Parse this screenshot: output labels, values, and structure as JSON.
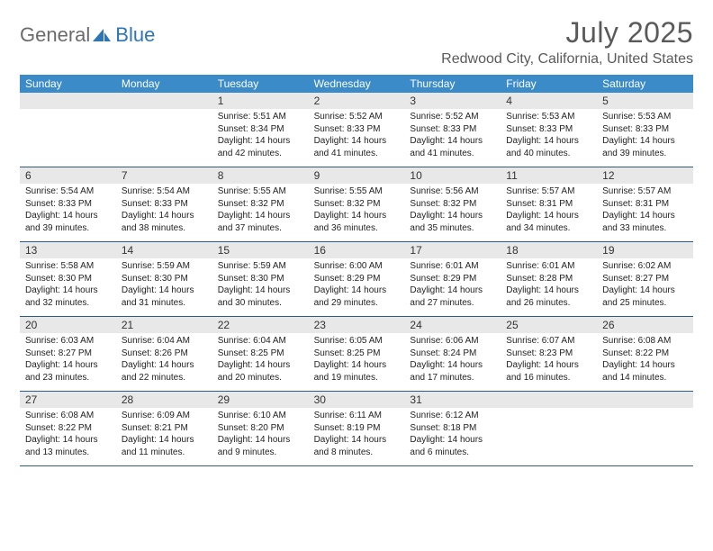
{
  "logo": {
    "text1": "General",
    "text2": "Blue",
    "text1_color": "#6b6b6b",
    "text2_color": "#2e75b6",
    "shape_color": "#2e75b6"
  },
  "title": "July 2025",
  "location": "Redwood City, California, United States",
  "colors": {
    "header_bg": "#3b8bc8",
    "header_text": "#ffffff",
    "daynum_bg": "#e8e8e8",
    "week_border": "#2e5c8a",
    "title_color": "#5a5a5a",
    "body_text": "#222222"
  },
  "day_headers": [
    "Sunday",
    "Monday",
    "Tuesday",
    "Wednesday",
    "Thursday",
    "Friday",
    "Saturday"
  ],
  "weeks": [
    [
      null,
      null,
      {
        "n": "1",
        "sr": "Sunrise: 5:51 AM",
        "ss": "Sunset: 8:34 PM",
        "d1": "Daylight: 14 hours",
        "d2": "and 42 minutes."
      },
      {
        "n": "2",
        "sr": "Sunrise: 5:52 AM",
        "ss": "Sunset: 8:33 PM",
        "d1": "Daylight: 14 hours",
        "d2": "and 41 minutes."
      },
      {
        "n": "3",
        "sr": "Sunrise: 5:52 AM",
        "ss": "Sunset: 8:33 PM",
        "d1": "Daylight: 14 hours",
        "d2": "and 41 minutes."
      },
      {
        "n": "4",
        "sr": "Sunrise: 5:53 AM",
        "ss": "Sunset: 8:33 PM",
        "d1": "Daylight: 14 hours",
        "d2": "and 40 minutes."
      },
      {
        "n": "5",
        "sr": "Sunrise: 5:53 AM",
        "ss": "Sunset: 8:33 PM",
        "d1": "Daylight: 14 hours",
        "d2": "and 39 minutes."
      }
    ],
    [
      {
        "n": "6",
        "sr": "Sunrise: 5:54 AM",
        "ss": "Sunset: 8:33 PM",
        "d1": "Daylight: 14 hours",
        "d2": "and 39 minutes."
      },
      {
        "n": "7",
        "sr": "Sunrise: 5:54 AM",
        "ss": "Sunset: 8:33 PM",
        "d1": "Daylight: 14 hours",
        "d2": "and 38 minutes."
      },
      {
        "n": "8",
        "sr": "Sunrise: 5:55 AM",
        "ss": "Sunset: 8:32 PM",
        "d1": "Daylight: 14 hours",
        "d2": "and 37 minutes."
      },
      {
        "n": "9",
        "sr": "Sunrise: 5:55 AM",
        "ss": "Sunset: 8:32 PM",
        "d1": "Daylight: 14 hours",
        "d2": "and 36 minutes."
      },
      {
        "n": "10",
        "sr": "Sunrise: 5:56 AM",
        "ss": "Sunset: 8:32 PM",
        "d1": "Daylight: 14 hours",
        "d2": "and 35 minutes."
      },
      {
        "n": "11",
        "sr": "Sunrise: 5:57 AM",
        "ss": "Sunset: 8:31 PM",
        "d1": "Daylight: 14 hours",
        "d2": "and 34 minutes."
      },
      {
        "n": "12",
        "sr": "Sunrise: 5:57 AM",
        "ss": "Sunset: 8:31 PM",
        "d1": "Daylight: 14 hours",
        "d2": "and 33 minutes."
      }
    ],
    [
      {
        "n": "13",
        "sr": "Sunrise: 5:58 AM",
        "ss": "Sunset: 8:30 PM",
        "d1": "Daylight: 14 hours",
        "d2": "and 32 minutes."
      },
      {
        "n": "14",
        "sr": "Sunrise: 5:59 AM",
        "ss": "Sunset: 8:30 PM",
        "d1": "Daylight: 14 hours",
        "d2": "and 31 minutes."
      },
      {
        "n": "15",
        "sr": "Sunrise: 5:59 AM",
        "ss": "Sunset: 8:30 PM",
        "d1": "Daylight: 14 hours",
        "d2": "and 30 minutes."
      },
      {
        "n": "16",
        "sr": "Sunrise: 6:00 AM",
        "ss": "Sunset: 8:29 PM",
        "d1": "Daylight: 14 hours",
        "d2": "and 29 minutes."
      },
      {
        "n": "17",
        "sr": "Sunrise: 6:01 AM",
        "ss": "Sunset: 8:29 PM",
        "d1": "Daylight: 14 hours",
        "d2": "and 27 minutes."
      },
      {
        "n": "18",
        "sr": "Sunrise: 6:01 AM",
        "ss": "Sunset: 8:28 PM",
        "d1": "Daylight: 14 hours",
        "d2": "and 26 minutes."
      },
      {
        "n": "19",
        "sr": "Sunrise: 6:02 AM",
        "ss": "Sunset: 8:27 PM",
        "d1": "Daylight: 14 hours",
        "d2": "and 25 minutes."
      }
    ],
    [
      {
        "n": "20",
        "sr": "Sunrise: 6:03 AM",
        "ss": "Sunset: 8:27 PM",
        "d1": "Daylight: 14 hours",
        "d2": "and 23 minutes."
      },
      {
        "n": "21",
        "sr": "Sunrise: 6:04 AM",
        "ss": "Sunset: 8:26 PM",
        "d1": "Daylight: 14 hours",
        "d2": "and 22 minutes."
      },
      {
        "n": "22",
        "sr": "Sunrise: 6:04 AM",
        "ss": "Sunset: 8:25 PM",
        "d1": "Daylight: 14 hours",
        "d2": "and 20 minutes."
      },
      {
        "n": "23",
        "sr": "Sunrise: 6:05 AM",
        "ss": "Sunset: 8:25 PM",
        "d1": "Daylight: 14 hours",
        "d2": "and 19 minutes."
      },
      {
        "n": "24",
        "sr": "Sunrise: 6:06 AM",
        "ss": "Sunset: 8:24 PM",
        "d1": "Daylight: 14 hours",
        "d2": "and 17 minutes."
      },
      {
        "n": "25",
        "sr": "Sunrise: 6:07 AM",
        "ss": "Sunset: 8:23 PM",
        "d1": "Daylight: 14 hours",
        "d2": "and 16 minutes."
      },
      {
        "n": "26",
        "sr": "Sunrise: 6:08 AM",
        "ss": "Sunset: 8:22 PM",
        "d1": "Daylight: 14 hours",
        "d2": "and 14 minutes."
      }
    ],
    [
      {
        "n": "27",
        "sr": "Sunrise: 6:08 AM",
        "ss": "Sunset: 8:22 PM",
        "d1": "Daylight: 14 hours",
        "d2": "and 13 minutes."
      },
      {
        "n": "28",
        "sr": "Sunrise: 6:09 AM",
        "ss": "Sunset: 8:21 PM",
        "d1": "Daylight: 14 hours",
        "d2": "and 11 minutes."
      },
      {
        "n": "29",
        "sr": "Sunrise: 6:10 AM",
        "ss": "Sunset: 8:20 PM",
        "d1": "Daylight: 14 hours",
        "d2": "and 9 minutes."
      },
      {
        "n": "30",
        "sr": "Sunrise: 6:11 AM",
        "ss": "Sunset: 8:19 PM",
        "d1": "Daylight: 14 hours",
        "d2": "and 8 minutes."
      },
      {
        "n": "31",
        "sr": "Sunrise: 6:12 AM",
        "ss": "Sunset: 8:18 PM",
        "d1": "Daylight: 14 hours",
        "d2": "and 6 minutes."
      },
      null,
      null
    ]
  ]
}
